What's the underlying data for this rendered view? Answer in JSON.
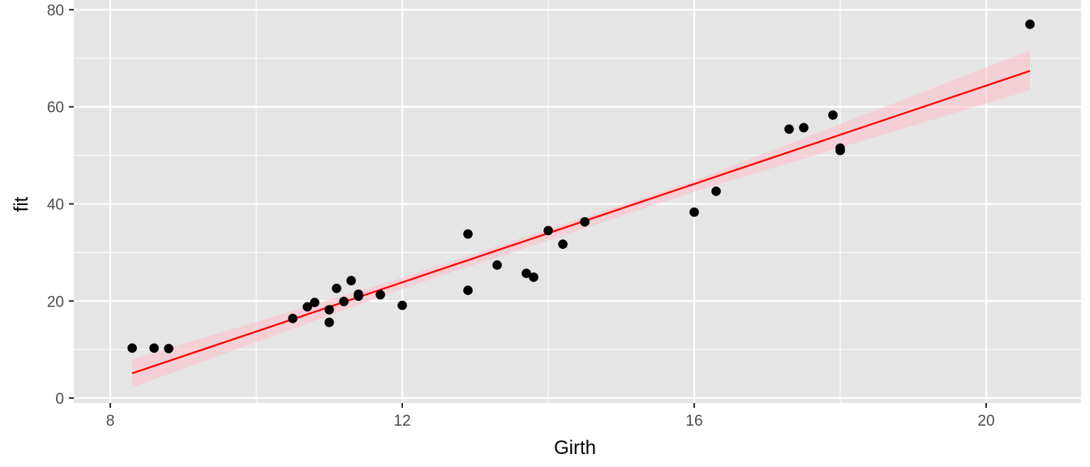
{
  "chart_data": {
    "type": "scatter",
    "xlabel": "Girth",
    "ylabel": "fit",
    "xlim": [
      7.5,
      21.3
    ],
    "ylim": [
      -1,
      82
    ],
    "x_ticks": [
      8,
      12,
      16,
      20
    ],
    "y_ticks": [
      0,
      20,
      40,
      60,
      80
    ],
    "grid": true,
    "legend": "none",
    "points": [
      {
        "x": 8.3,
        "y": 10.3
      },
      {
        "x": 8.6,
        "y": 10.3
      },
      {
        "x": 8.8,
        "y": 10.2
      },
      {
        "x": 10.5,
        "y": 16.4
      },
      {
        "x": 10.7,
        "y": 18.8
      },
      {
        "x": 10.8,
        "y": 19.7
      },
      {
        "x": 11.0,
        "y": 15.6
      },
      {
        "x": 11.0,
        "y": 18.2
      },
      {
        "x": 11.1,
        "y": 22.6
      },
      {
        "x": 11.2,
        "y": 19.9
      },
      {
        "x": 11.3,
        "y": 24.2
      },
      {
        "x": 11.4,
        "y": 21.0
      },
      {
        "x": 11.4,
        "y": 21.4
      },
      {
        "x": 11.7,
        "y": 21.3
      },
      {
        "x": 12.0,
        "y": 19.1
      },
      {
        "x": 12.9,
        "y": 22.2
      },
      {
        "x": 12.9,
        "y": 33.8
      },
      {
        "x": 13.3,
        "y": 27.4
      },
      {
        "x": 13.7,
        "y": 25.7
      },
      {
        "x": 13.8,
        "y": 24.9
      },
      {
        "x": 14.0,
        "y": 34.5
      },
      {
        "x": 14.2,
        "y": 31.7
      },
      {
        "x": 14.5,
        "y": 36.3
      },
      {
        "x": 16.0,
        "y": 38.3
      },
      {
        "x": 16.3,
        "y": 42.6
      },
      {
        "x": 17.3,
        "y": 55.4
      },
      {
        "x": 17.5,
        "y": 55.7
      },
      {
        "x": 17.9,
        "y": 58.3
      },
      {
        "x": 18.0,
        "y": 51.5
      },
      {
        "x": 18.0,
        "y": 51.0
      },
      {
        "x": 20.6,
        "y": 77.0
      }
    ],
    "fit_line": {
      "x": [
        8.3,
        20.6
      ],
      "y": [
        5.1,
        67.4
      ],
      "color": "#ff0000"
    },
    "confidence_band": {
      "x": [
        8.3,
        12.0,
        16.0,
        20.6
      ],
      "lower": [
        2.2,
        22.5,
        42.5,
        63.4
      ],
      "upper": [
        8.0,
        24.8,
        44.8,
        71.6
      ],
      "color": "#ffc0cb"
    },
    "colors": {
      "panel_background": "#e5e5e5",
      "grid": "#ffffff",
      "points": "#000000"
    }
  }
}
